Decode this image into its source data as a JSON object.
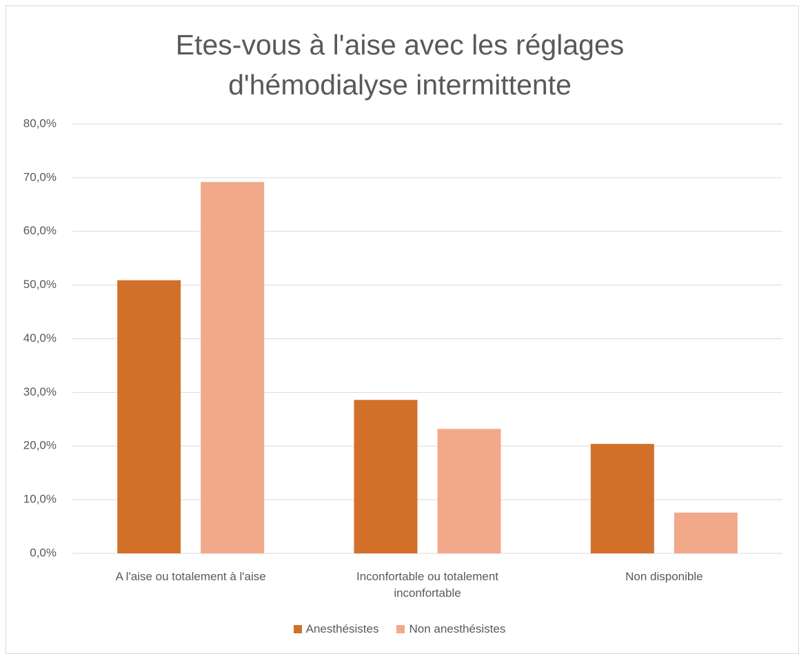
{
  "chart_data": {
    "type": "bar",
    "title": "Etes-vous à l'aise avec les réglages d'hémodialyse intermittente",
    "categories": [
      "A l'aise ou totalement à l'aise",
      "Inconfortable ou totalement inconfortable",
      "Non disponible"
    ],
    "series": [
      {
        "name": "Anesthésistes",
        "color": "#d2702a",
        "values": [
          50.9,
          28.6,
          20.4
        ]
      },
      {
        "name": "Non anesthésistes",
        "color": "#f1a98a",
        "values": [
          69.2,
          23.2,
          7.6
        ]
      }
    ],
    "ylim": [
      0,
      80
    ],
    "yticks": [
      {
        "value": 0,
        "label": "0,0%"
      },
      {
        "value": 10,
        "label": "10,0%"
      },
      {
        "value": 20,
        "label": "20,0%"
      },
      {
        "value": 30,
        "label": "30,0%"
      },
      {
        "value": 40,
        "label": "40,0%"
      },
      {
        "value": 50,
        "label": "50,0%"
      },
      {
        "value": 60,
        "label": "60,0%"
      },
      {
        "value": 70,
        "label": "70,0%"
      },
      {
        "value": 80,
        "label": "80,0%"
      }
    ],
    "grid": true,
    "legend": "bottom"
  }
}
